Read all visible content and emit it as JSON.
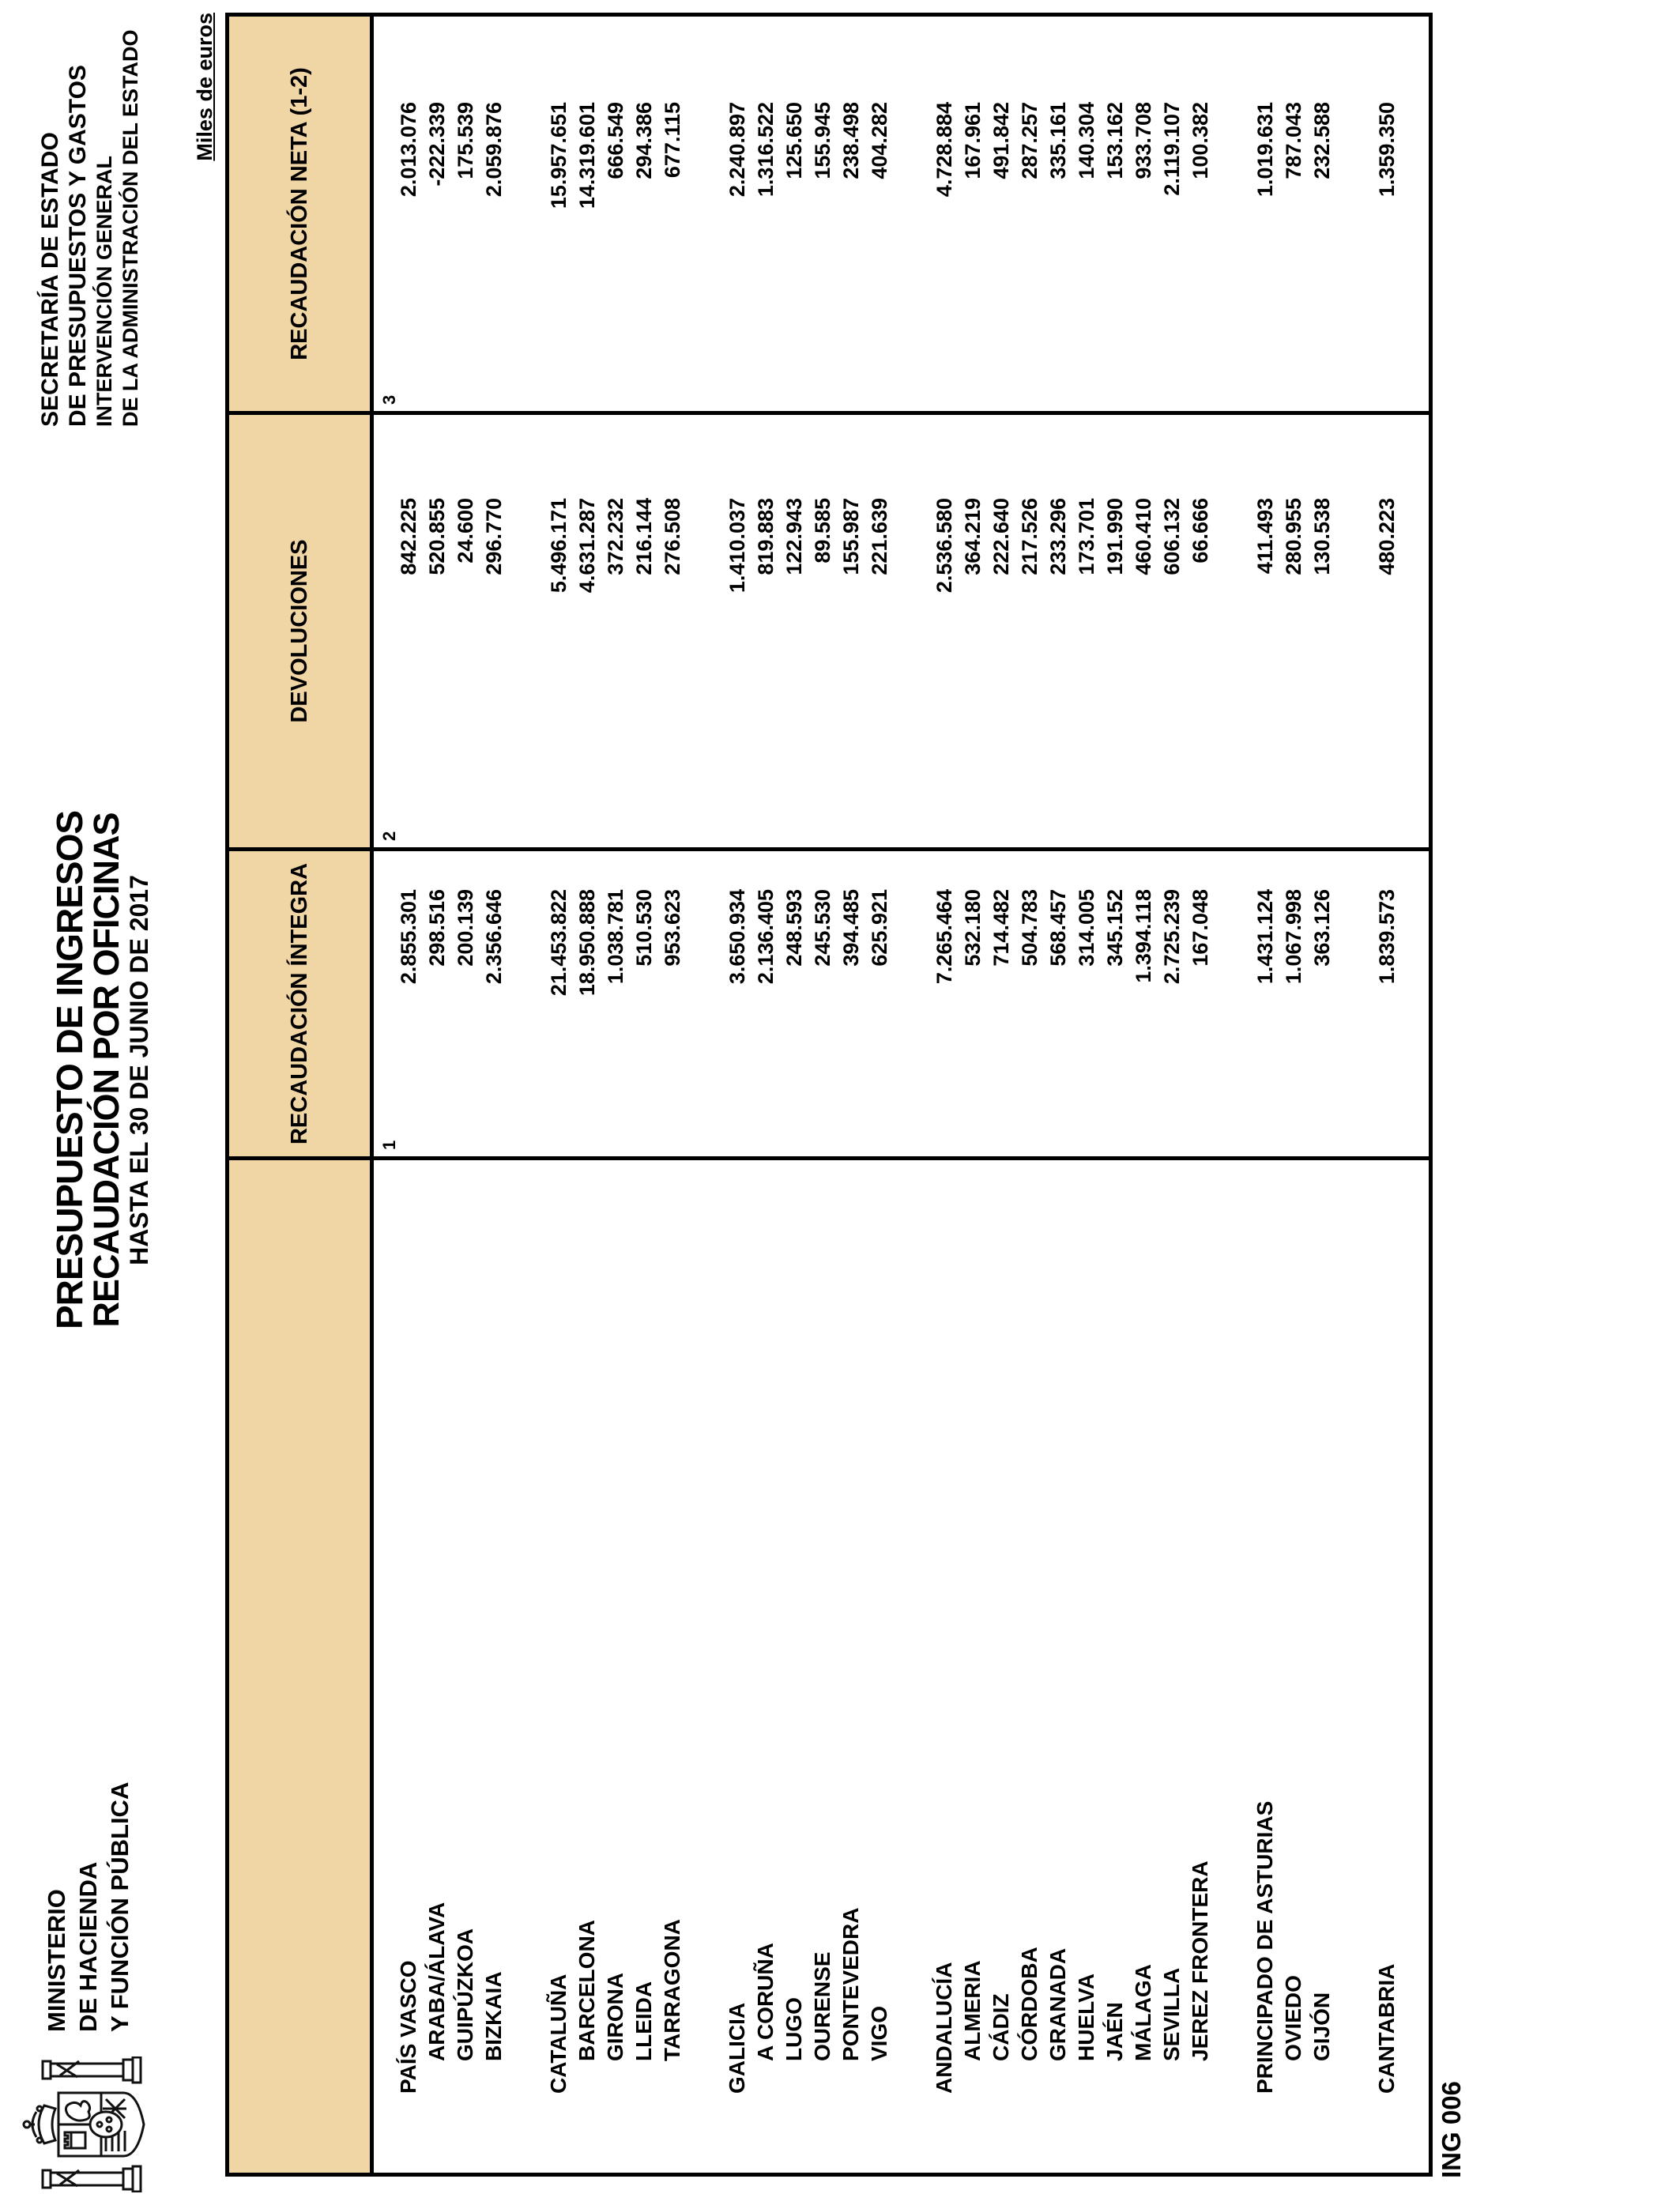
{
  "page": {
    "ministry_lines": [
      "MINISTERIO",
      "DE HACIENDA",
      "Y FUNCIÓN PÚBLICA"
    ],
    "title_line1": "PRESUPUESTO DE INGRESOS",
    "title_line2": "RECAUDACIÓN POR OFICINAS",
    "title_line3": "HASTA EL 30 DE JUNIO DE 2017",
    "secretariat_lines": [
      "SECRETARÍA DE ESTADO",
      "DE PRESUPUESTOS Y GASTOS",
      "INTERVENCIÓN GENERAL",
      "DE LA ADMINISTRACIÓN DEL ESTADO"
    ],
    "unit_note": "Miles de euros",
    "form_code": "ING 006",
    "emblem_icon": "spain-coat-of-arms-icon"
  },
  "colors": {
    "header_band_fill": "#f0d5a5",
    "grid_line": "#000000",
    "text": "#000000"
  },
  "table": {
    "column_headers": [
      {
        "label": "RECAUDACIÓN ÍNTEGRA",
        "num": "1"
      },
      {
        "label": "DEVOLUCIONES",
        "num": "2"
      },
      {
        "label": "RECAUDACIÓN NETA (1-2)",
        "num": "3"
      }
    ],
    "groups": [
      {
        "region": "PAÍS VASCO",
        "integra": "2.855.301",
        "devoluciones": "842.225",
        "neta": "2.013.076",
        "provinces": [
          {
            "name": "ARABA/ÁLAVA",
            "integra": "298.516",
            "devoluciones": "520.855",
            "neta": "-222.339"
          },
          {
            "name": "GUIPÚZKOA",
            "integra": "200.139",
            "devoluciones": "24.600",
            "neta": "175.539"
          },
          {
            "name": "BIZKAIA",
            "integra": "2.356.646",
            "devoluciones": "296.770",
            "neta": "2.059.876"
          }
        ]
      },
      {
        "region": "CATALUÑA",
        "integra": "21.453.822",
        "devoluciones": "5.496.171",
        "neta": "15.957.651",
        "provinces": [
          {
            "name": "BARCELONA",
            "integra": "18.950.888",
            "devoluciones": "4.631.287",
            "neta": "14.319.601"
          },
          {
            "name": "GIRONA",
            "integra": "1.038.781",
            "devoluciones": "372.232",
            "neta": "666.549"
          },
          {
            "name": "LLEIDA",
            "integra": "510.530",
            "devoluciones": "216.144",
            "neta": "294.386"
          },
          {
            "name": "TARRAGONA",
            "integra": "953.623",
            "devoluciones": "276.508",
            "neta": "677.115"
          }
        ]
      },
      {
        "region": "GALICIA",
        "integra": "3.650.934",
        "devoluciones": "1.410.037",
        "neta": "2.240.897",
        "provinces": [
          {
            "name": "A CORUÑA",
            "integra": "2.136.405",
            "devoluciones": "819.883",
            "neta": "1.316.522"
          },
          {
            "name": "LUGO",
            "integra": "248.593",
            "devoluciones": "122.943",
            "neta": "125.650"
          },
          {
            "name": "OURENSE",
            "integra": "245.530",
            "devoluciones": "89.585",
            "neta": "155.945"
          },
          {
            "name": "PONTEVEDRA",
            "integra": "394.485",
            "devoluciones": "155.987",
            "neta": "238.498"
          },
          {
            "name": "VIGO",
            "integra": "625.921",
            "devoluciones": "221.639",
            "neta": "404.282"
          }
        ]
      },
      {
        "region": "ANDALUCÍA",
        "integra": "7.265.464",
        "devoluciones": "2.536.580",
        "neta": "4.728.884",
        "provinces": [
          {
            "name": "ALMERIA",
            "integra": "532.180",
            "devoluciones": "364.219",
            "neta": "167.961"
          },
          {
            "name": "CÁDIZ",
            "integra": "714.482",
            "devoluciones": "222.640",
            "neta": "491.842"
          },
          {
            "name": "CÓRDOBA",
            "integra": "504.783",
            "devoluciones": "217.526",
            "neta": "287.257"
          },
          {
            "name": "GRANADA",
            "integra": "568.457",
            "devoluciones": "233.296",
            "neta": "335.161"
          },
          {
            "name": "HUELVA",
            "integra": "314.005",
            "devoluciones": "173.701",
            "neta": "140.304"
          },
          {
            "name": "JAÉN",
            "integra": "345.152",
            "devoluciones": "191.990",
            "neta": "153.162"
          },
          {
            "name": "MÁLAGA",
            "integra": "1.394.118",
            "devoluciones": "460.410",
            "neta": "933.708"
          },
          {
            "name": "SEVILLA",
            "integra": "2.725.239",
            "devoluciones": "606.132",
            "neta": "2.119.107"
          },
          {
            "name": "JEREZ FRONTERA",
            "integra": "167.048",
            "devoluciones": "66.666",
            "neta": "100.382"
          }
        ]
      },
      {
        "region": "PRINCIPADO DE ASTURIAS",
        "integra": "1.431.124",
        "devoluciones": "411.493",
        "neta": "1.019.631",
        "provinces": [
          {
            "name": "OVIEDO",
            "integra": "1.067.998",
            "devoluciones": "280.955",
            "neta": "787.043"
          },
          {
            "name": "GIJÓN",
            "integra": "363.126",
            "devoluciones": "130.538",
            "neta": "232.588"
          }
        ]
      },
      {
        "region": "CANTABRIA",
        "integra": "1.839.573",
        "devoluciones": "480.223",
        "neta": "1.359.350",
        "provinces": []
      }
    ]
  }
}
